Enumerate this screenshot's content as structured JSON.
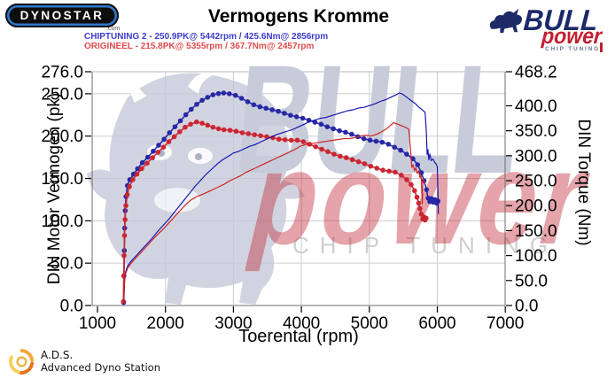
{
  "header": {
    "dynostar_logo_text": "DYNOSTAR",
    "dynostar_domain": ".com",
    "title": "Vermogens Kromme",
    "legend": [
      {
        "label": "CHIPTUNING 2  - 250.9PK@ 5442rpm / 425.6Nm@ 2856rpm",
        "color": "#3c3ccd"
      },
      {
        "label": "ORIGINEEL  - 215.8PK@ 5355rpm / 367.7Nm@ 2457rpm",
        "color": "#e14b4b"
      }
    ],
    "bullpower_logo": {
      "line1": "BULL",
      "line2": "power",
      "line3": "CHIP TUNING"
    }
  },
  "watermark": {
    "bull_text": "BULL",
    "power_text": "power",
    "chip_text": "CHIP TUNING"
  },
  "footer": {
    "abbr": "A.D.S.",
    "name": "Advanced Dyno Station"
  },
  "chart_data": {
    "type": "line",
    "title": "Vermogens Kromme",
    "grid": true,
    "x_axis": {
      "label": "Toerental (rpm)",
      "min": 1000,
      "max": 7000,
      "ticks": [
        1000,
        2000,
        3000,
        4000,
        5000,
        6000,
        7000
      ],
      "tick_labels": [
        "1000",
        "2000",
        "3000",
        "4000",
        "5000",
        "6000",
        "7000"
      ]
    },
    "y_left": {
      "label": "DIN Motor Vermogen (pk)",
      "min": 0,
      "max": 276,
      "ticks": [
        276,
        250,
        200,
        150,
        100,
        50,
        0
      ],
      "tick_labels": [
        "276.0",
        "250.0",
        "200.0",
        "150.0",
        "100.0",
        "50.0",
        "0.0"
      ]
    },
    "y_right": {
      "label": "DIN Torque (Nm)",
      "min": 0,
      "max": 468.2,
      "ticks": [
        468.2,
        400,
        350,
        300,
        250,
        200,
        150,
        100,
        50,
        0
      ],
      "tick_labels": [
        "468.2",
        "400.0",
        "350.0",
        "300.0",
        "250.0",
        "200.0",
        "150.0",
        "100.0",
        "50.0",
        "0.0"
      ]
    },
    "series": [
      {
        "name": "CHIPTUNING 2 koppel (Nm)",
        "axis": "right",
        "marker": true,
        "color": "#2828a6",
        "peak": "425.6Nm@ 2856rpm",
        "points": [
          [
            1385,
            6
          ],
          [
            1390,
            60
          ],
          [
            1395,
            110
          ],
          [
            1400,
            155
          ],
          [
            1408,
            190
          ],
          [
            1420,
            218
          ],
          [
            1440,
            240
          ],
          [
            1475,
            252
          ],
          [
            1530,
            263
          ],
          [
            1590,
            274
          ],
          [
            1660,
            286
          ],
          [
            1740,
            297
          ],
          [
            1820,
            309
          ],
          [
            1900,
            321
          ],
          [
            1980,
            333
          ],
          [
            2060,
            346
          ],
          [
            2140,
            358
          ],
          [
            2220,
            370
          ],
          [
            2300,
            382
          ],
          [
            2380,
            393
          ],
          [
            2460,
            403
          ],
          [
            2540,
            411
          ],
          [
            2620,
            417
          ],
          [
            2700,
            422
          ],
          [
            2780,
            424.5
          ],
          [
            2856,
            425.6
          ],
          [
            2940,
            424
          ],
          [
            3030,
            421
          ],
          [
            3120,
            415
          ],
          [
            3210,
            408
          ],
          [
            3300,
            402
          ],
          [
            3390,
            398
          ],
          [
            3480,
            395
          ],
          [
            3570,
            392
          ],
          [
            3660,
            389
          ],
          [
            3750,
            385
          ],
          [
            3840,
            381
          ],
          [
            3930,
            378
          ],
          [
            4020,
            375
          ],
          [
            4110,
            371
          ],
          [
            4200,
            367
          ],
          [
            4290,
            363
          ],
          [
            4380,
            358
          ],
          [
            4470,
            354
          ],
          [
            4560,
            350
          ],
          [
            4650,
            347
          ],
          [
            4740,
            343
          ],
          [
            4830,
            338
          ],
          [
            4920,
            334
          ],
          [
            5010,
            331
          ],
          [
            5100,
            329
          ],
          [
            5190,
            327
          ],
          [
            5280,
            323
          ],
          [
            5370,
            317
          ],
          [
            5460,
            311
          ],
          [
            5550,
            303
          ],
          [
            5640,
            294
          ],
          [
            5710,
            282
          ],
          [
            5765,
            266
          ],
          [
            5805,
            250
          ],
          [
            5840,
            232
          ],
          [
            5865,
            215
          ],
          [
            5890,
            208
          ],
          [
            5915,
            214
          ],
          [
            5940,
            207
          ],
          [
            5965,
            212
          ],
          [
            5990,
            205
          ],
          [
            6010,
            209
          ]
        ]
      },
      {
        "name": "ORIGINEEL koppel (Nm)",
        "axis": "right",
        "marker": true,
        "color": "#cc2632",
        "peak": "367.7Nm@ 2457rpm",
        "points": [
          [
            1382,
            8
          ],
          [
            1387,
            59
          ],
          [
            1392,
            100
          ],
          [
            1398,
            140
          ],
          [
            1406,
            172
          ],
          [
            1418,
            200
          ],
          [
            1438,
            222
          ],
          [
            1470,
            238
          ],
          [
            1520,
            252
          ],
          [
            1580,
            263
          ],
          [
            1650,
            274
          ],
          [
            1730,
            285
          ],
          [
            1810,
            296
          ],
          [
            1890,
            307
          ],
          [
            1970,
            317
          ],
          [
            2050,
            328
          ],
          [
            2130,
            338
          ],
          [
            2210,
            348
          ],
          [
            2290,
            357
          ],
          [
            2370,
            363
          ],
          [
            2457,
            367.7
          ],
          [
            2540,
            365
          ],
          [
            2620,
            361
          ],
          [
            2700,
            357
          ],
          [
            2780,
            354
          ],
          [
            2860,
            352
          ],
          [
            2950,
            351
          ],
          [
            3040,
            349
          ],
          [
            3130,
            346
          ],
          [
            3220,
            344
          ],
          [
            3310,
            342
          ],
          [
            3400,
            340
          ],
          [
            3490,
            338
          ],
          [
            3580,
            336
          ],
          [
            3670,
            333
          ],
          [
            3760,
            332
          ],
          [
            3850,
            331
          ],
          [
            3940,
            331
          ],
          [
            4030,
            328
          ],
          [
            4120,
            323
          ],
          [
            4210,
            318
          ],
          [
            4300,
            313
          ],
          [
            4390,
            308
          ],
          [
            4480,
            303
          ],
          [
            4570,
            299
          ],
          [
            4660,
            296
          ],
          [
            4750,
            292
          ],
          [
            4840,
            288
          ],
          [
            4930,
            284
          ],
          [
            5020,
            279
          ],
          [
            5110,
            275
          ],
          [
            5200,
            271
          ],
          [
            5290,
            269
          ],
          [
            5380,
            267
          ],
          [
            5470,
            261
          ],
          [
            5550,
            252
          ],
          [
            5615,
            242
          ],
          [
            5665,
            230
          ],
          [
            5700,
            217
          ],
          [
            5725,
            205
          ],
          [
            5745,
            194
          ],
          [
            5765,
            183
          ],
          [
            5785,
            173
          ],
          [
            5805,
            177
          ],
          [
            5820,
            171
          ],
          [
            5835,
            175
          ]
        ]
      },
      {
        "name": "CHIPTUNING 2 vermogen (pk)",
        "axis": "left",
        "marker": false,
        "color": "#1212b2",
        "peak": "250.9PK@ 5442rpm",
        "points": [
          [
            1388,
            3
          ],
          [
            1395,
            20
          ],
          [
            1402,
            33
          ],
          [
            1415,
            40
          ],
          [
            1440,
            46
          ],
          [
            1490,
            52
          ],
          [
            1560,
            58
          ],
          [
            1640,
            65
          ],
          [
            1720,
            72
          ],
          [
            1800,
            79
          ],
          [
            1880,
            87
          ],
          [
            1960,
            94
          ],
          [
            2040,
            101
          ],
          [
            2120,
            109
          ],
          [
            2200,
            117
          ],
          [
            2280,
            125
          ],
          [
            2360,
            133
          ],
          [
            2440,
            141
          ],
          [
            2520,
            148
          ],
          [
            2600,
            155
          ],
          [
            2680,
            161
          ],
          [
            2760,
            167
          ],
          [
            2840,
            172
          ],
          [
            2920,
            176
          ],
          [
            3000,
            180
          ],
          [
            3080,
            182
          ],
          [
            3160,
            185
          ],
          [
            3240,
            188
          ],
          [
            3320,
            190
          ],
          [
            3400,
            193
          ],
          [
            3480,
            196
          ],
          [
            3560,
            199
          ],
          [
            3640,
            202
          ],
          [
            3720,
            204
          ],
          [
            3800,
            206
          ],
          [
            3880,
            208
          ],
          [
            3960,
            211
          ],
          [
            4040,
            214
          ],
          [
            4120,
            217
          ],
          [
            4200,
            219
          ],
          [
            4280,
            221
          ],
          [
            4360,
            222
          ],
          [
            4440,
            224
          ],
          [
            4520,
            226
          ],
          [
            4600,
            228
          ],
          [
            4680,
            230
          ],
          [
            4760,
            231
          ],
          [
            4840,
            233
          ],
          [
            4920,
            234
          ],
          [
            5000,
            236
          ],
          [
            5080,
            238
          ],
          [
            5160,
            241
          ],
          [
            5240,
            243
          ],
          [
            5320,
            246
          ],
          [
            5400,
            249
          ],
          [
            5442,
            250.9
          ],
          [
            5480,
            250
          ],
          [
            5530,
            247
          ],
          [
            5580,
            244
          ],
          [
            5630,
            241
          ],
          [
            5680,
            238
          ],
          [
            5730,
            234
          ],
          [
            5780,
            231
          ],
          [
            5820,
            228
          ],
          [
            5838,
            205
          ],
          [
            5850,
            178
          ],
          [
            5862,
            184
          ],
          [
            5875,
            172
          ],
          [
            5890,
            179
          ],
          [
            5910,
            171
          ],
          [
            5935,
            173
          ],
          [
            5960,
            169
          ],
          [
            5985,
            167
          ],
          [
            6000,
            164
          ],
          [
            6008,
            138
          ],
          [
            6015,
            108
          ]
        ]
      },
      {
        "name": "ORIGINEEL vermogen (pk)",
        "axis": "left",
        "marker": false,
        "color": "#cf1f1f",
        "peak": "215.8PK@ 5355rpm",
        "points": [
          [
            1385,
            2
          ],
          [
            1392,
            18
          ],
          [
            1400,
            30
          ],
          [
            1415,
            38
          ],
          [
            1445,
            44
          ],
          [
            1495,
            50
          ],
          [
            1565,
            56
          ],
          [
            1645,
            63
          ],
          [
            1725,
            70
          ],
          [
            1805,
            77
          ],
          [
            1885,
            84
          ],
          [
            1965,
            90
          ],
          [
            2045,
            97
          ],
          [
            2125,
            104
          ],
          [
            2205,
            111
          ],
          [
            2285,
            118
          ],
          [
            2365,
            124
          ],
          [
            2457,
            128.6
          ],
          [
            2540,
            131
          ],
          [
            2620,
            134
          ],
          [
            2700,
            137
          ],
          [
            2780,
            140
          ],
          [
            2860,
            143
          ],
          [
            2940,
            147
          ],
          [
            3020,
            150
          ],
          [
            3100,
            153
          ],
          [
            3180,
            157
          ],
          [
            3260,
            160
          ],
          [
            3340,
            163
          ],
          [
            3420,
            166
          ],
          [
            3500,
            169
          ],
          [
            3580,
            172
          ],
          [
            3660,
            175
          ],
          [
            3740,
            178
          ],
          [
            3820,
            181
          ],
          [
            3900,
            184
          ],
          [
            3980,
            188
          ],
          [
            4060,
            190
          ],
          [
            4140,
            191
          ],
          [
            4220,
            192
          ],
          [
            4300,
            193
          ],
          [
            4380,
            194
          ],
          [
            4460,
            195
          ],
          [
            4540,
            196
          ],
          [
            4620,
            197
          ],
          [
            4700,
            197
          ],
          [
            4780,
            198
          ],
          [
            4860,
            200
          ],
          [
            4940,
            201
          ],
          [
            5020,
            200
          ],
          [
            5100,
            202
          ],
          [
            5180,
            205
          ],
          [
            5260,
            209
          ],
          [
            5355,
            215.8
          ],
          [
            5420,
            214
          ],
          [
            5480,
            212
          ],
          [
            5540,
            210
          ],
          [
            5580,
            208
          ],
          [
            5605,
            185
          ],
          [
            5625,
            163
          ],
          [
            5645,
            166
          ],
          [
            5665,
            159
          ],
          [
            5685,
            163
          ],
          [
            5705,
            156
          ],
          [
            5725,
            159
          ],
          [
            5745,
            151
          ],
          [
            5762,
            154
          ],
          [
            5778,
            120
          ],
          [
            5790,
            150
          ],
          [
            5805,
            147
          ],
          [
            5818,
            144
          ]
        ]
      }
    ]
  }
}
